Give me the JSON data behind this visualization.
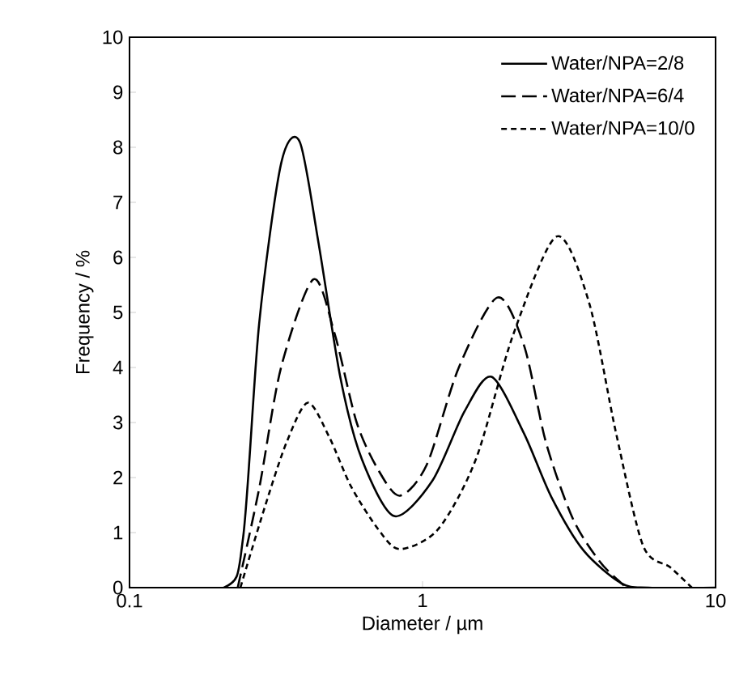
{
  "chart_data": {
    "type": "line",
    "xlabel": "Diameter / µm",
    "ylabel": "Frequency / %",
    "log": "x",
    "xlim": [
      0.1,
      10
    ],
    "xticks": [
      0.1,
      1,
      10
    ],
    "ylim": [
      0,
      10
    ],
    "yticks": [
      0,
      1,
      2,
      3,
      4,
      5,
      6,
      7,
      8,
      9,
      10
    ],
    "legend": "top right",
    "grid": false,
    "series": [
      {
        "name": "Water/NPA=2/8",
        "color": "#000000",
        "line_style": "solid",
        "x": [
          0.1,
          0.21,
          0.244,
          0.277,
          0.329,
          0.381,
          0.442,
          0.525,
          0.621,
          0.8,
          1.08,
          1.39,
          1.72,
          2.22,
          2.75,
          3.55,
          4.77,
          5.9,
          10
        ],
        "values": [
          0,
          0,
          0.9,
          4.8,
          7.7,
          8.1,
          6.25,
          3.8,
          2.33,
          1.3,
          1.94,
          3.2,
          3.83,
          2.8,
          1.65,
          0.67,
          0.08,
          0,
          0
        ]
      },
      {
        "name": "Water/NPA=6/4",
        "color": "#000000",
        "line_style": "dashed",
        "x": [
          0.234,
          0.277,
          0.329,
          0.424,
          0.502,
          0.596,
          0.706,
          0.837,
          1.035,
          1.33,
          1.8,
          2.22,
          2.64,
          3.26,
          4.03,
          4.77,
          4.98
        ],
        "values": [
          0,
          1.8,
          4.0,
          5.6,
          4.6,
          3.0,
          2.14,
          1.67,
          2.24,
          4.0,
          5.27,
          4.4,
          2.63,
          1.25,
          0.47,
          0.08,
          0
        ]
      },
      {
        "name": "Water/NPA=10/0",
        "color": "#000000",
        "line_style": "dotted",
        "x": [
          0.239,
          0.289,
          0.343,
          0.406,
          0.481,
          0.57,
          0.706,
          0.837,
          1.13,
          1.52,
          2.04,
          2.87,
          3.7,
          4.57,
          5.66,
          7.0,
          8.3
        ],
        "values": [
          0,
          1.45,
          2.63,
          3.36,
          2.73,
          1.84,
          1.06,
          0.7,
          1.06,
          2.33,
          4.6,
          6.38,
          5.18,
          2.82,
          0.76,
          0.37,
          0
        ]
      }
    ]
  }
}
